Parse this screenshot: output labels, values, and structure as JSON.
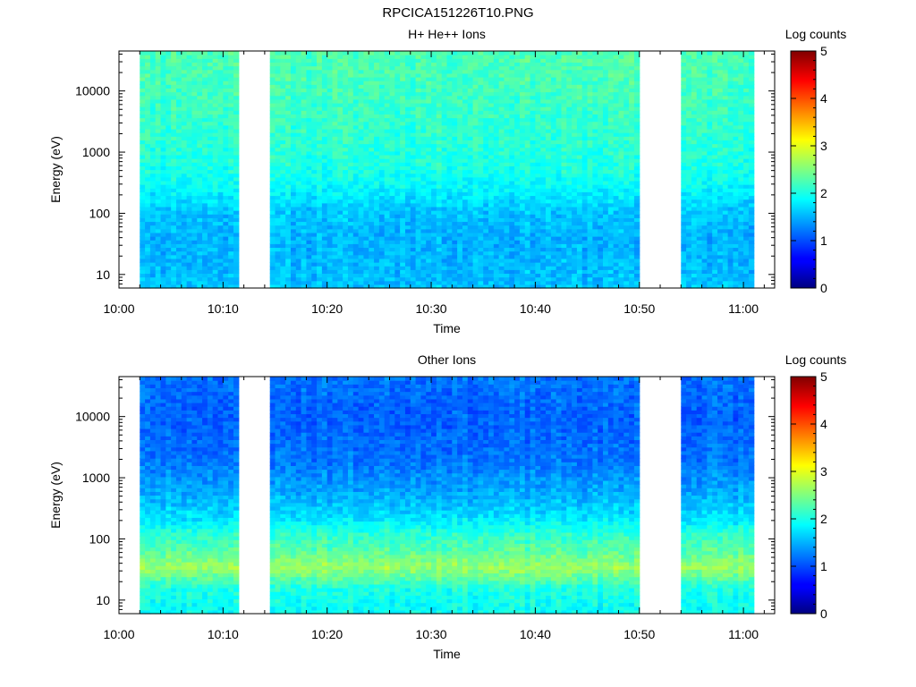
{
  "page_title": "RPCICA151226T10.PNG",
  "chart_data": [
    {
      "type": "heatmap",
      "title": "H+ He++ Ions",
      "xlabel": "Time",
      "ylabel": "Energy (eV)",
      "x_ticks": [
        "10:00",
        "10:10",
        "10:20",
        "10:30",
        "10:40",
        "10:50",
        "11:00"
      ],
      "x_range_minutes": [
        0,
        63
      ],
      "y_scale": "log",
      "y_ticks": [
        10,
        100,
        1000,
        10000
      ],
      "y_tick_labels": [
        "10",
        "100",
        "1000",
        "10000"
      ],
      "y_range": [
        6,
        45000
      ],
      "data_gaps_minutes": [
        [
          0,
          2
        ],
        [
          11.5,
          14.5
        ],
        [
          50,
          53.8
        ],
        [
          61,
          63
        ]
      ],
      "colorbar": {
        "label": "Log counts",
        "range": [
          0,
          5
        ],
        "ticks": [
          "0",
          "1",
          "2",
          "3",
          "4",
          "5"
        ]
      },
      "profile": [
        {
          "e": 45000,
          "v": 2.25
        },
        {
          "e": 10000,
          "v": 2.2
        },
        {
          "e": 2000,
          "v": 2.1
        },
        {
          "e": 500,
          "v": 2.0
        },
        {
          "e": 250,
          "v": 1.85
        },
        {
          "e": 110,
          "v": 1.6
        },
        {
          "e": 40,
          "v": 1.5
        },
        {
          "e": 10,
          "v": 1.55
        },
        {
          "e": 6,
          "v": 1.6
        }
      ],
      "seed": 11
    },
    {
      "type": "heatmap",
      "title": "Other Ions",
      "xlabel": "Time",
      "ylabel": "Energy (eV)",
      "x_ticks": [
        "10:00",
        "10:10",
        "10:20",
        "10:30",
        "10:40",
        "10:50",
        "11:00"
      ],
      "x_range_minutes": [
        0,
        63
      ],
      "y_scale": "log",
      "y_ticks": [
        10,
        100,
        1000,
        10000
      ],
      "y_tick_labels": [
        "10",
        "100",
        "1000",
        "10000"
      ],
      "y_range": [
        6,
        45000
      ],
      "data_gaps_minutes": [
        [
          0,
          2
        ],
        [
          11.5,
          14.5
        ],
        [
          50,
          53.8
        ],
        [
          61,
          63
        ]
      ],
      "colorbar": {
        "label": "Log counts",
        "range": [
          0,
          5
        ],
        "ticks": [
          "0",
          "1",
          "2",
          "3",
          "4",
          "5"
        ]
      },
      "profile": [
        {
          "e": 45000,
          "v": 1.2
        },
        {
          "e": 10000,
          "v": 1.1
        },
        {
          "e": 2000,
          "v": 1.2
        },
        {
          "e": 600,
          "v": 1.45
        },
        {
          "e": 220,
          "v": 1.75
        },
        {
          "e": 120,
          "v": 2.1
        },
        {
          "e": 60,
          "v": 2.35
        },
        {
          "e": 35,
          "v": 2.65
        },
        {
          "e": 25,
          "v": 2.4
        },
        {
          "e": 15,
          "v": 2.0
        },
        {
          "e": 6,
          "v": 1.9
        }
      ],
      "seed": 23
    }
  ]
}
